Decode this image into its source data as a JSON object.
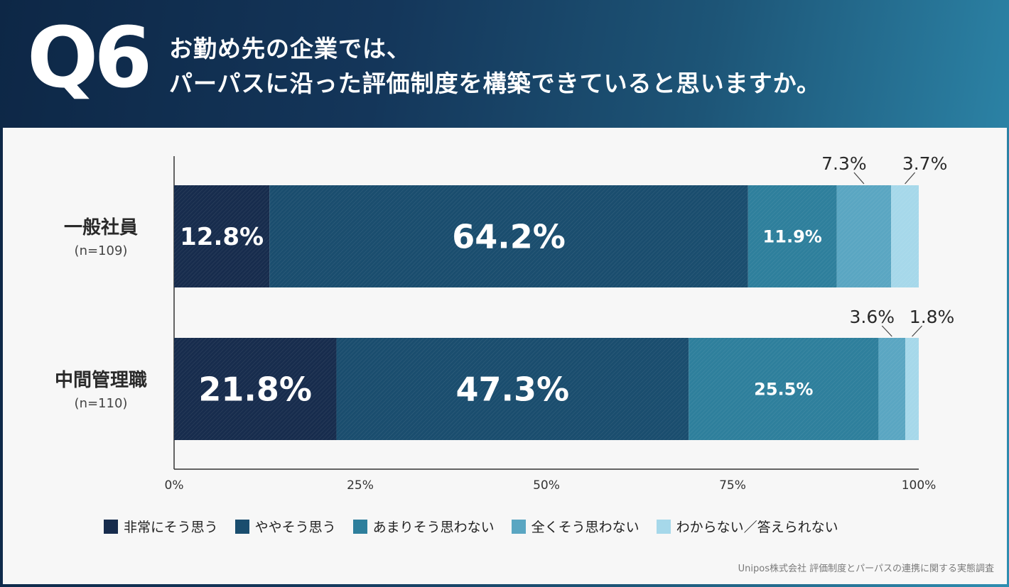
{
  "header": {
    "q_number": "Q6",
    "title_line1": "お勤め先の企業では、",
    "title_line2": "パーパスに沿った評価制度を構築できていると思いますか。"
  },
  "source": "Unipos株式会社 評価制度とパーパスの連携に関する実態調査",
  "colors": [
    "#172c4d",
    "#1a4d6e",
    "#2e7f9c",
    "#5aa6c2",
    "#a6d8ea"
  ],
  "chart_data": {
    "type": "bar",
    "orientation": "horizontal",
    "stacked": true,
    "categories": [
      {
        "label": "一般社員",
        "n": "(n=109)"
      },
      {
        "label": "中間管理職",
        "n": "(n=110)"
      }
    ],
    "series": [
      {
        "name": "非常にそう思う",
        "values": [
          12.8,
          21.8
        ],
        "labels": [
          "12.8%",
          "21.8%"
        ]
      },
      {
        "name": "ややそう思う",
        "values": [
          64.2,
          47.3
        ],
        "labels": [
          "64.2%",
          "47.3%"
        ]
      },
      {
        "name": "あまりそう思わない",
        "values": [
          11.9,
          25.5
        ],
        "labels": [
          "11.9%",
          "25.5%"
        ]
      },
      {
        "name": "全くそう思わない",
        "values": [
          7.3,
          3.6
        ],
        "labels": [
          "7.3%",
          "3.6%"
        ]
      },
      {
        "name": "わからない／答えられない",
        "values": [
          3.7,
          1.8
        ],
        "labels": [
          "3.7%",
          "1.8%"
        ]
      }
    ],
    "xlim": [
      0,
      100
    ],
    "x_ticks": [
      "0%",
      "25%",
      "50%",
      "75%",
      "100%"
    ],
    "legend_position": "bottom"
  }
}
